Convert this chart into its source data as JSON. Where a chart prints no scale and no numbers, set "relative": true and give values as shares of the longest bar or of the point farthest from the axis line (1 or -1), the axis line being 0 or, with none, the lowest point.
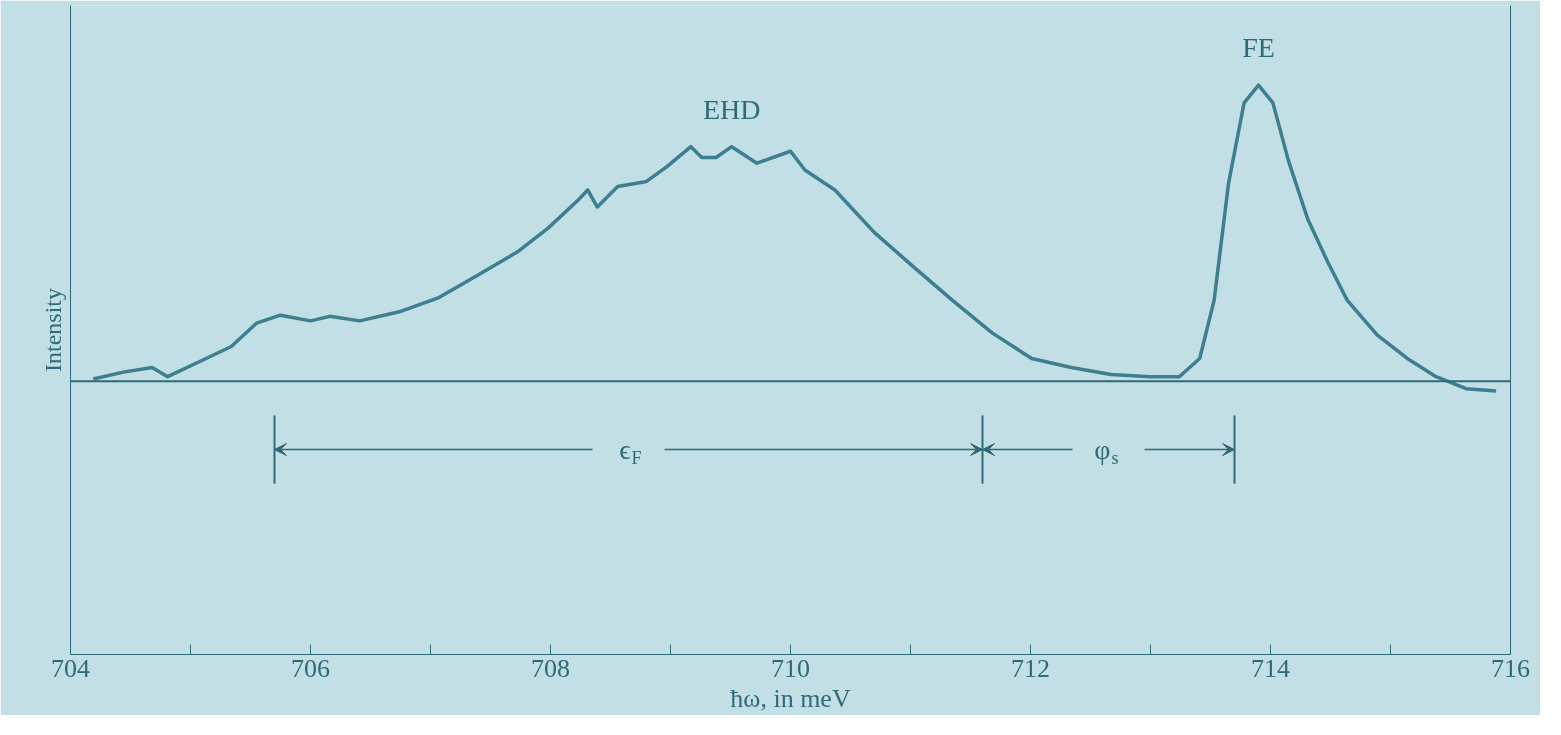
{
  "chart_data": {
    "type": "line",
    "relative": true,
    "xlabel": "ħω, in meV",
    "ylabel": "Intensity",
    "color": "#3c7f8e",
    "tick_labels": "x",
    "grid": false,
    "marker": "none",
    "line_style": "solid",
    "xlim": [
      704,
      716
    ],
    "xticks": [
      704,
      {
        "value": 705,
        "label": null
      },
      706,
      {
        "value": 707,
        "label": null
      },
      708,
      {
        "value": 709,
        "label": null
      },
      710,
      {
        "value": 711,
        "label": null
      },
      712,
      {
        "value": 713,
        "label": null
      },
      714,
      {
        "value": 715,
        "label": null
      },
      716
    ],
    "x": [
      704.19,
      704.44,
      704.68,
      704.81,
      705.09,
      705.34,
      705.55,
      705.75,
      706.0,
      706.16,
      706.41,
      706.74,
      707.07,
      707.4,
      707.73,
      707.98,
      708.22,
      708.31,
      708.39,
      708.56,
      708.8,
      708.97,
      709.17,
      709.26,
      709.38,
      709.51,
      709.72,
      710.0,
      710.12,
      710.37,
      710.7,
      711.03,
      711.35,
      711.68,
      712.01,
      712.34,
      712.67,
      713.0,
      713.24,
      713.41,
      713.53,
      713.65,
      713.78,
      713.9,
      714.02,
      714.15,
      714.31,
      714.48,
      714.64,
      714.89,
      715.14,
      715.38,
      715.63,
      715.88
    ],
    "values": [
      0.484,
      0.496,
      0.504,
      0.488,
      0.516,
      0.541,
      0.582,
      0.596,
      0.586,
      0.594,
      0.586,
      0.602,
      0.627,
      0.667,
      0.708,
      0.749,
      0.796,
      0.816,
      0.786,
      0.822,
      0.831,
      0.857,
      0.892,
      0.873,
      0.873,
      0.892,
      0.863,
      0.884,
      0.851,
      0.816,
      0.741,
      0.68,
      0.622,
      0.565,
      0.52,
      0.504,
      0.492,
      0.488,
      0.488,
      0.52,
      0.622,
      0.827,
      0.969,
      1,
      0.969,
      0.867,
      0.765,
      0.688,
      0.622,
      0.561,
      0.52,
      0.488,
      0.467,
      0.463
    ],
    "ref_lines": [
      {
        "axis": "y",
        "value": 0.48
      },
      {
        "axis": "x",
        "value": 705.7
      },
      {
        "axis": "x",
        "value": 711.6
      },
      {
        "axis": "x",
        "value": 713.7
      }
    ],
    "annotations": [
      {
        "text": "EHD",
        "x": 709.51,
        "y": 0.892
      },
      {
        "text": "FE",
        "x": 713.9,
        "y": 1
      },
      "ϵ$_{F}$",
      "φ$_{s}$"
    ]
  }
}
